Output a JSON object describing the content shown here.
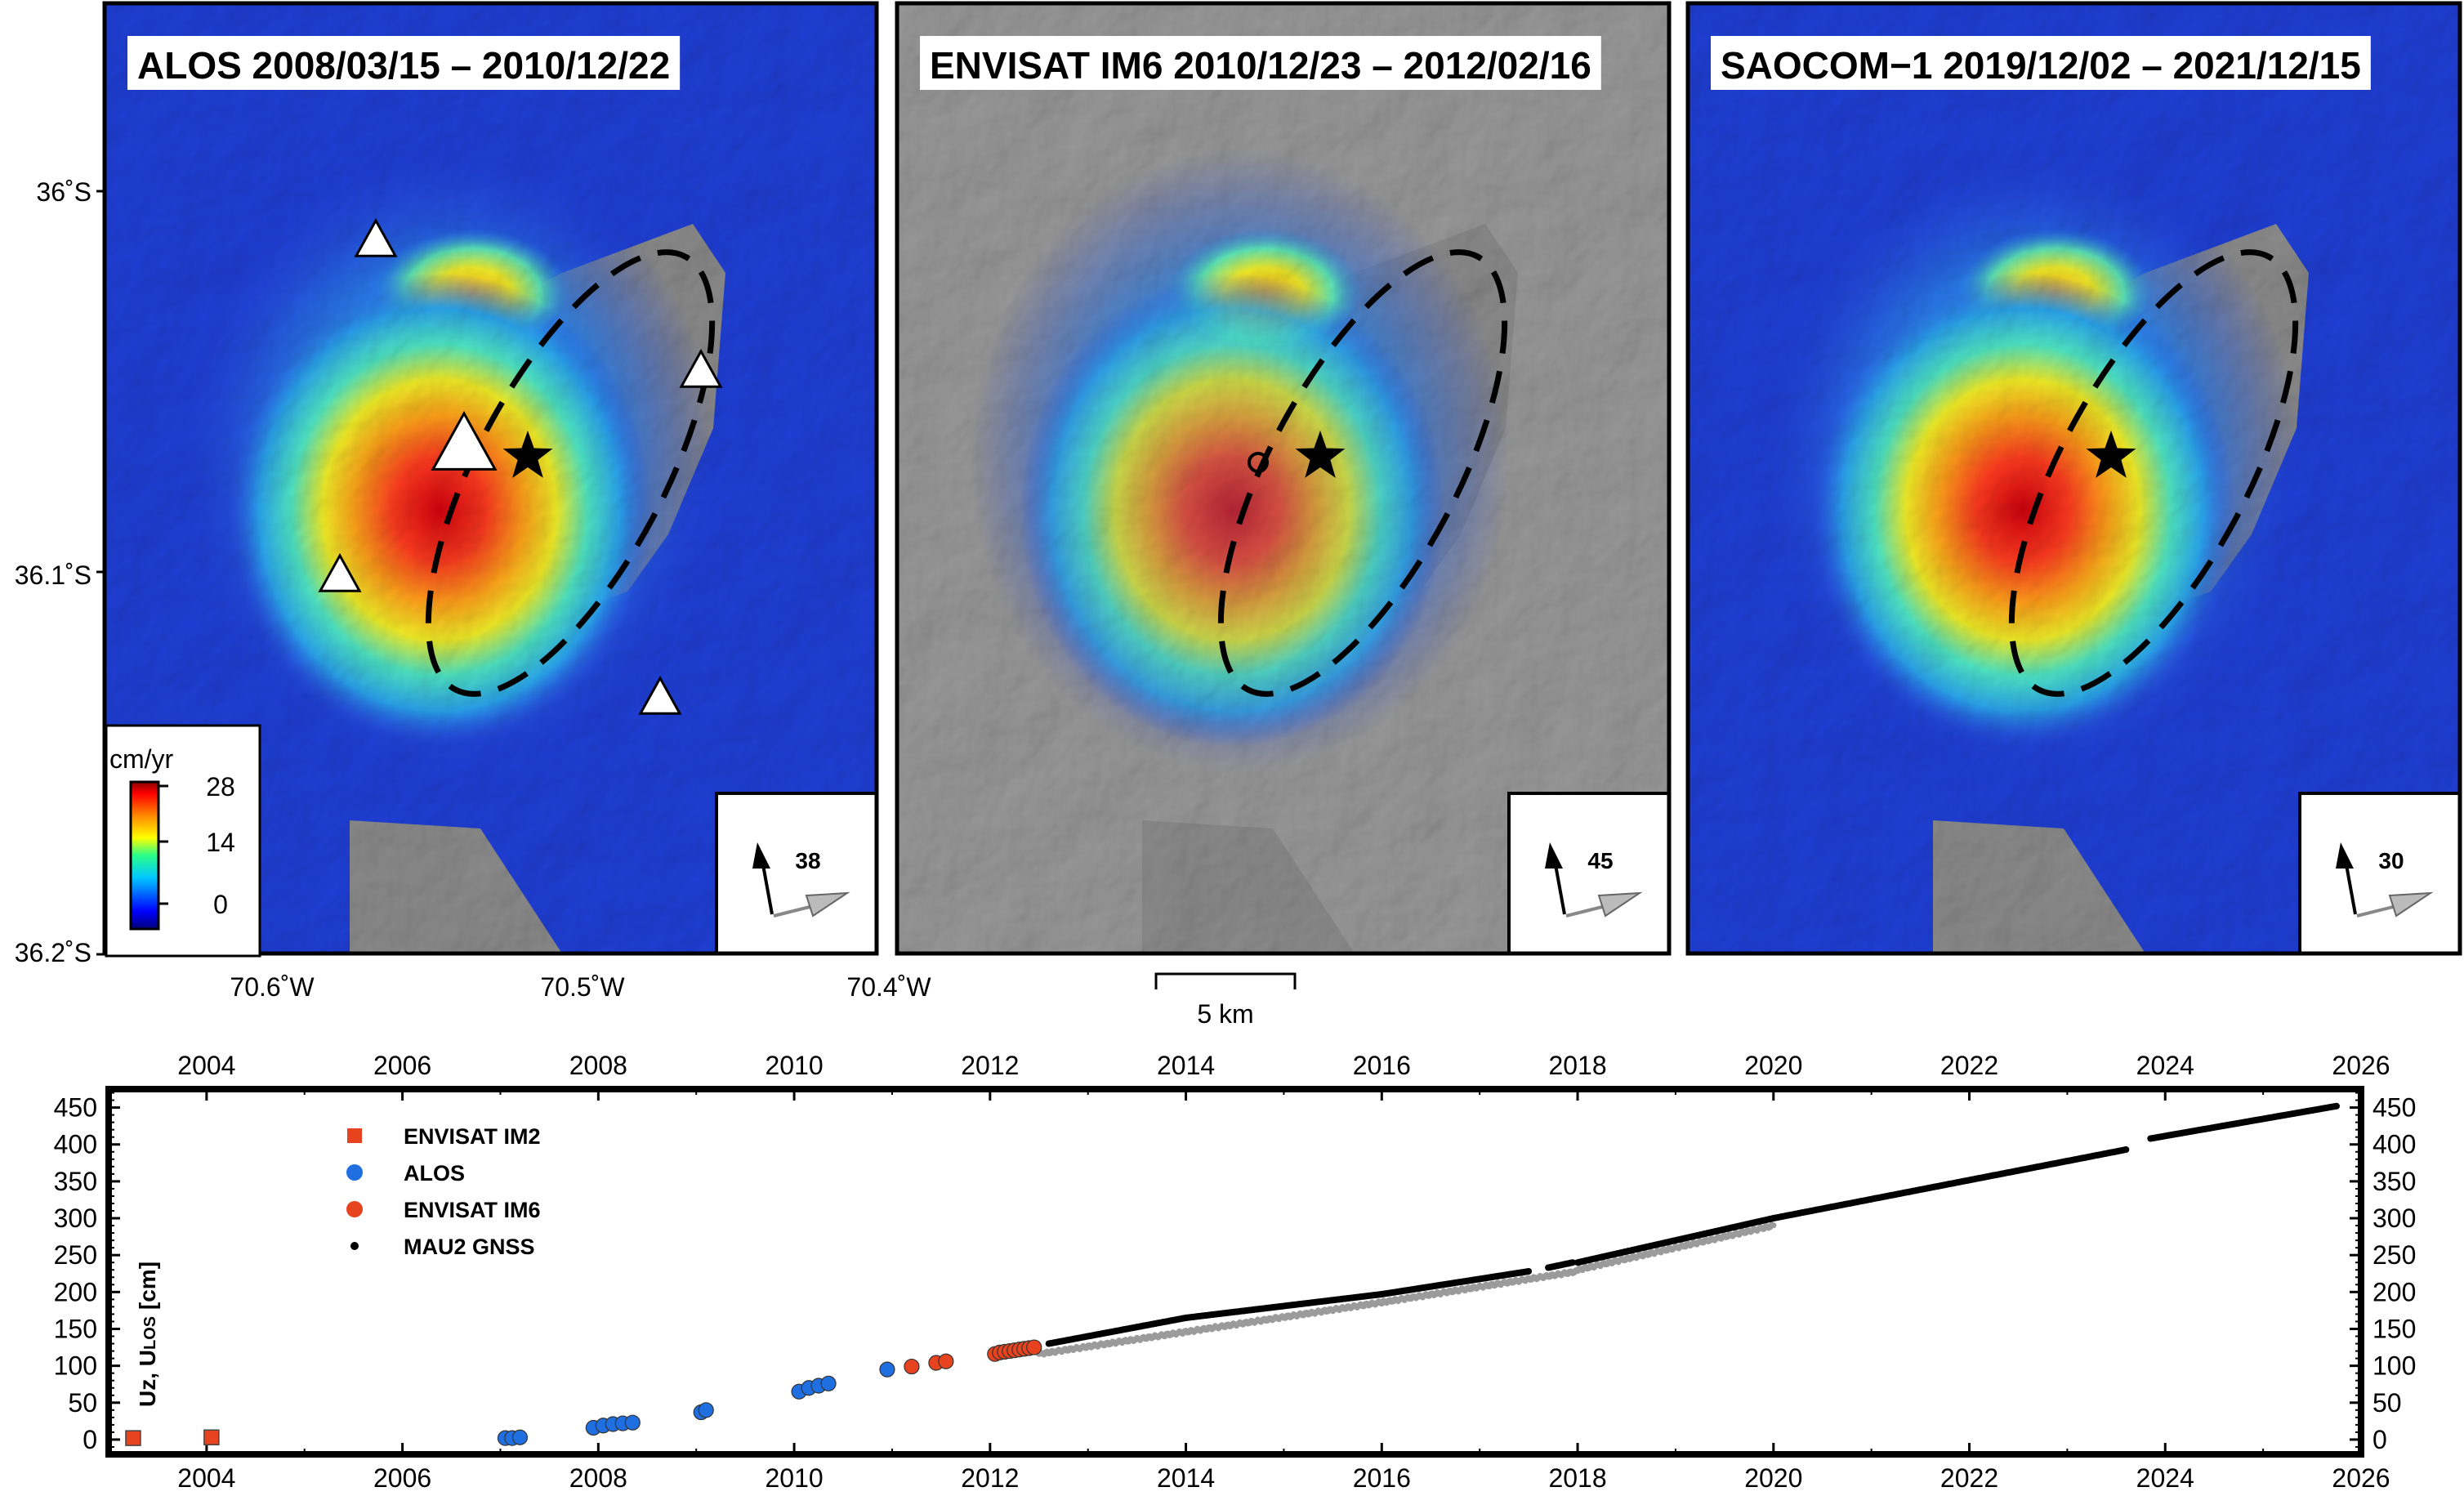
{
  "maps": {
    "panels": [
      {
        "title": "ALOS 2008/03/15 – 2010/12/22",
        "incidence": "38"
      },
      {
        "title": "ENVISAT IM6 2010/12/23 – 2012/02/16",
        "incidence": "45"
      },
      {
        "title": "SAOCOM−1 2019/12/02 – 2021/12/15",
        "incidence": "30"
      }
    ],
    "lat_labels": [
      "36˚S",
      "36.1˚S",
      "36.2˚S"
    ],
    "lon_labels": [
      "70.6˚W",
      "70.5˚W",
      "70.4˚W"
    ],
    "scalebar_label": "5 km",
    "colorbar": {
      "unit": "cm/yr",
      "ticks": [
        "28",
        "14",
        "0"
      ],
      "range": [
        0,
        28
      ]
    }
  },
  "chart_data": {
    "type": "scatter",
    "xlim": [
      2003,
      2026
    ],
    "ylim": [
      -20,
      475
    ],
    "x_ticks": [
      "2004",
      "2006",
      "2008",
      "2010",
      "2012",
      "2014",
      "2016",
      "2018",
      "2020",
      "2022",
      "2024",
      "2026"
    ],
    "y_ticks": [
      "0",
      "50",
      "100",
      "150",
      "200",
      "250",
      "300",
      "350",
      "400",
      "450"
    ],
    "ylabel": "Uz, ULOS [cm]",
    "ylabel_parts": {
      "main": "Uz, U",
      "sub": "LOS",
      "unit": " [cm]"
    },
    "grid": false,
    "legend_position": "upper-left",
    "series": [
      {
        "name": "ENVISAT IM2",
        "marker": "square",
        "color": "#e8431f",
        "points": [
          [
            2003.25,
            2
          ],
          [
            2004.05,
            3
          ]
        ]
      },
      {
        "name": "ALOS",
        "marker": "circle",
        "color": "#1f6fe0",
        "points": [
          [
            2007.05,
            2
          ],
          [
            2007.12,
            2
          ],
          [
            2007.2,
            3
          ],
          [
            2007.95,
            16
          ],
          [
            2008.05,
            19
          ],
          [
            2008.15,
            21
          ],
          [
            2008.25,
            22
          ],
          [
            2008.35,
            23
          ],
          [
            2009.05,
            37
          ],
          [
            2009.1,
            40
          ],
          [
            2010.05,
            65
          ],
          [
            2010.15,
            70
          ],
          [
            2010.25,
            73
          ],
          [
            2010.35,
            76
          ],
          [
            2010.95,
            95
          ]
        ]
      },
      {
        "name": "ENVISAT IM6",
        "marker": "circle",
        "color": "#e8431f",
        "points": [
          [
            2011.2,
            99
          ],
          [
            2011.45,
            104
          ],
          [
            2011.55,
            106
          ],
          [
            2012.05,
            116
          ],
          [
            2012.1,
            118
          ],
          [
            2012.15,
            119
          ],
          [
            2012.2,
            120
          ],
          [
            2012.25,
            121
          ],
          [
            2012.3,
            122
          ],
          [
            2012.35,
            123
          ],
          [
            2012.4,
            124
          ],
          [
            2012.45,
            125
          ]
        ]
      },
      {
        "name": "MAU2 GNSS",
        "marker": "dot",
        "color": "#000000",
        "segments": [
          [
            2012.6,
            2014.0,
            130,
            165
          ],
          [
            2014.0,
            2016.0,
            165,
            197
          ],
          [
            2016.0,
            2017.5,
            197,
            228
          ],
          [
            2017.7,
            2017.95,
            233,
            240
          ],
          [
            2018.0,
            2020.0,
            240,
            300
          ],
          [
            2020.0,
            2023.6,
            300,
            393
          ],
          [
            2023.85,
            2025.75,
            408,
            452
          ]
        ]
      }
    ],
    "comparison_series_segments": [
      [
        2012.5,
        2016.0,
        120,
        190
      ],
      [
        2016.0,
        2018.0,
        190,
        232
      ],
      [
        2018.0,
        2020.0,
        234,
        294
      ]
    ]
  }
}
